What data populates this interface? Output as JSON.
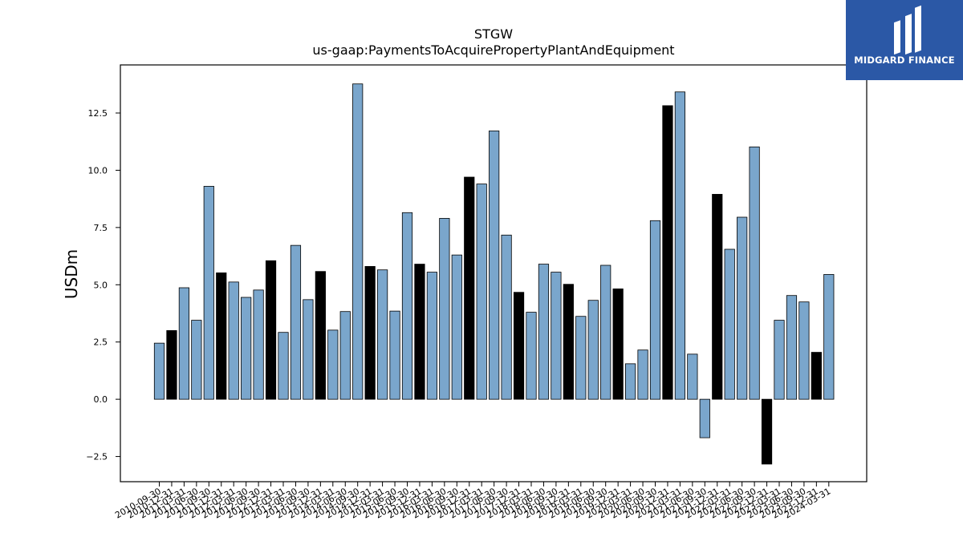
{
  "brand": {
    "name": "MIDGARD FINANCE",
    "bg_color": "#2b58a6"
  },
  "chart_data": {
    "type": "bar",
    "title": "STGW",
    "subtitle": "us-gaap:PaymentsToAcquirePropertyPlantAndEquipment",
    "xlabel": "",
    "ylabel": "USDm",
    "ylim": [
      -3.6,
      14.6
    ],
    "yticks": [
      -2.5,
      0.0,
      2.5,
      5.0,
      7.5,
      10.0,
      12.5
    ],
    "ytick_labels": [
      "−2.5",
      "0.0",
      "2.5",
      "5.0",
      "7.5",
      "10.0",
      "12.5"
    ],
    "grid": false,
    "colors": {
      "default": "#7aa6cc",
      "highlight": "#000000",
      "edge": "#000000"
    },
    "categories": [
      "2010-09-30",
      "2010-12-31",
      "2011-03-31",
      "2011-06-30",
      "2011-09-30",
      "2011-12-31",
      "2012-03-31",
      "2012-06-30",
      "2012-09-30",
      "2012-12-31",
      "2013-03-31",
      "2013-06-30",
      "2013-09-30",
      "2013-12-31",
      "2014-03-31",
      "2014-06-30",
      "2014-09-30",
      "2014-12-31",
      "2015-03-31",
      "2015-06-30",
      "2015-09-30",
      "2015-12-31",
      "2016-03-31",
      "2016-06-30",
      "2016-09-30",
      "2016-12-31",
      "2017-03-31",
      "2017-06-30",
      "2017-09-30",
      "2017-12-31",
      "2018-03-31",
      "2018-06-30",
      "2018-09-30",
      "2018-12-31",
      "2019-03-31",
      "2019-06-30",
      "2019-09-30",
      "2019-12-31",
      "2020-03-31",
      "2020-06-30",
      "2020-09-30",
      "2020-12-31",
      "2021-03-31",
      "2021-06-30",
      "2021-09-30",
      "2021-12-31",
      "2022-03-31",
      "2022-06-30",
      "2022-09-30",
      "2022-12-31",
      "2023-03-31",
      "2023-06-30",
      "2023-09-30",
      "2023-12-31",
      "2024-03-31"
    ],
    "values": [
      2.45,
      3.0,
      4.87,
      3.45,
      9.3,
      5.52,
      5.12,
      4.45,
      4.77,
      6.05,
      2.92,
      6.72,
      4.35,
      5.58,
      3.02,
      3.83,
      13.77,
      5.8,
      5.65,
      3.85,
      8.15,
      5.9,
      5.55,
      7.9,
      6.3,
      9.7,
      9.4,
      11.72,
      7.17,
      4.67,
      3.8,
      5.9,
      5.55,
      5.02,
      3.62,
      4.32,
      5.85,
      4.82,
      1.55,
      2.15,
      7.8,
      12.82,
      13.42,
      1.97,
      -1.68,
      8.95,
      6.55,
      7.95,
      11.02,
      -2.83,
      3.45,
      4.53,
      4.25,
      2.05,
      5.45
    ],
    "highlight": [
      false,
      true,
      false,
      false,
      false,
      true,
      false,
      false,
      false,
      true,
      false,
      false,
      false,
      true,
      false,
      false,
      false,
      true,
      false,
      false,
      false,
      true,
      false,
      false,
      false,
      true,
      false,
      false,
      false,
      true,
      false,
      false,
      false,
      true,
      false,
      false,
      false,
      true,
      false,
      false,
      false,
      true,
      false,
      false,
      false,
      true,
      false,
      false,
      false,
      true,
      false,
      false,
      false,
      true,
      false
    ]
  }
}
